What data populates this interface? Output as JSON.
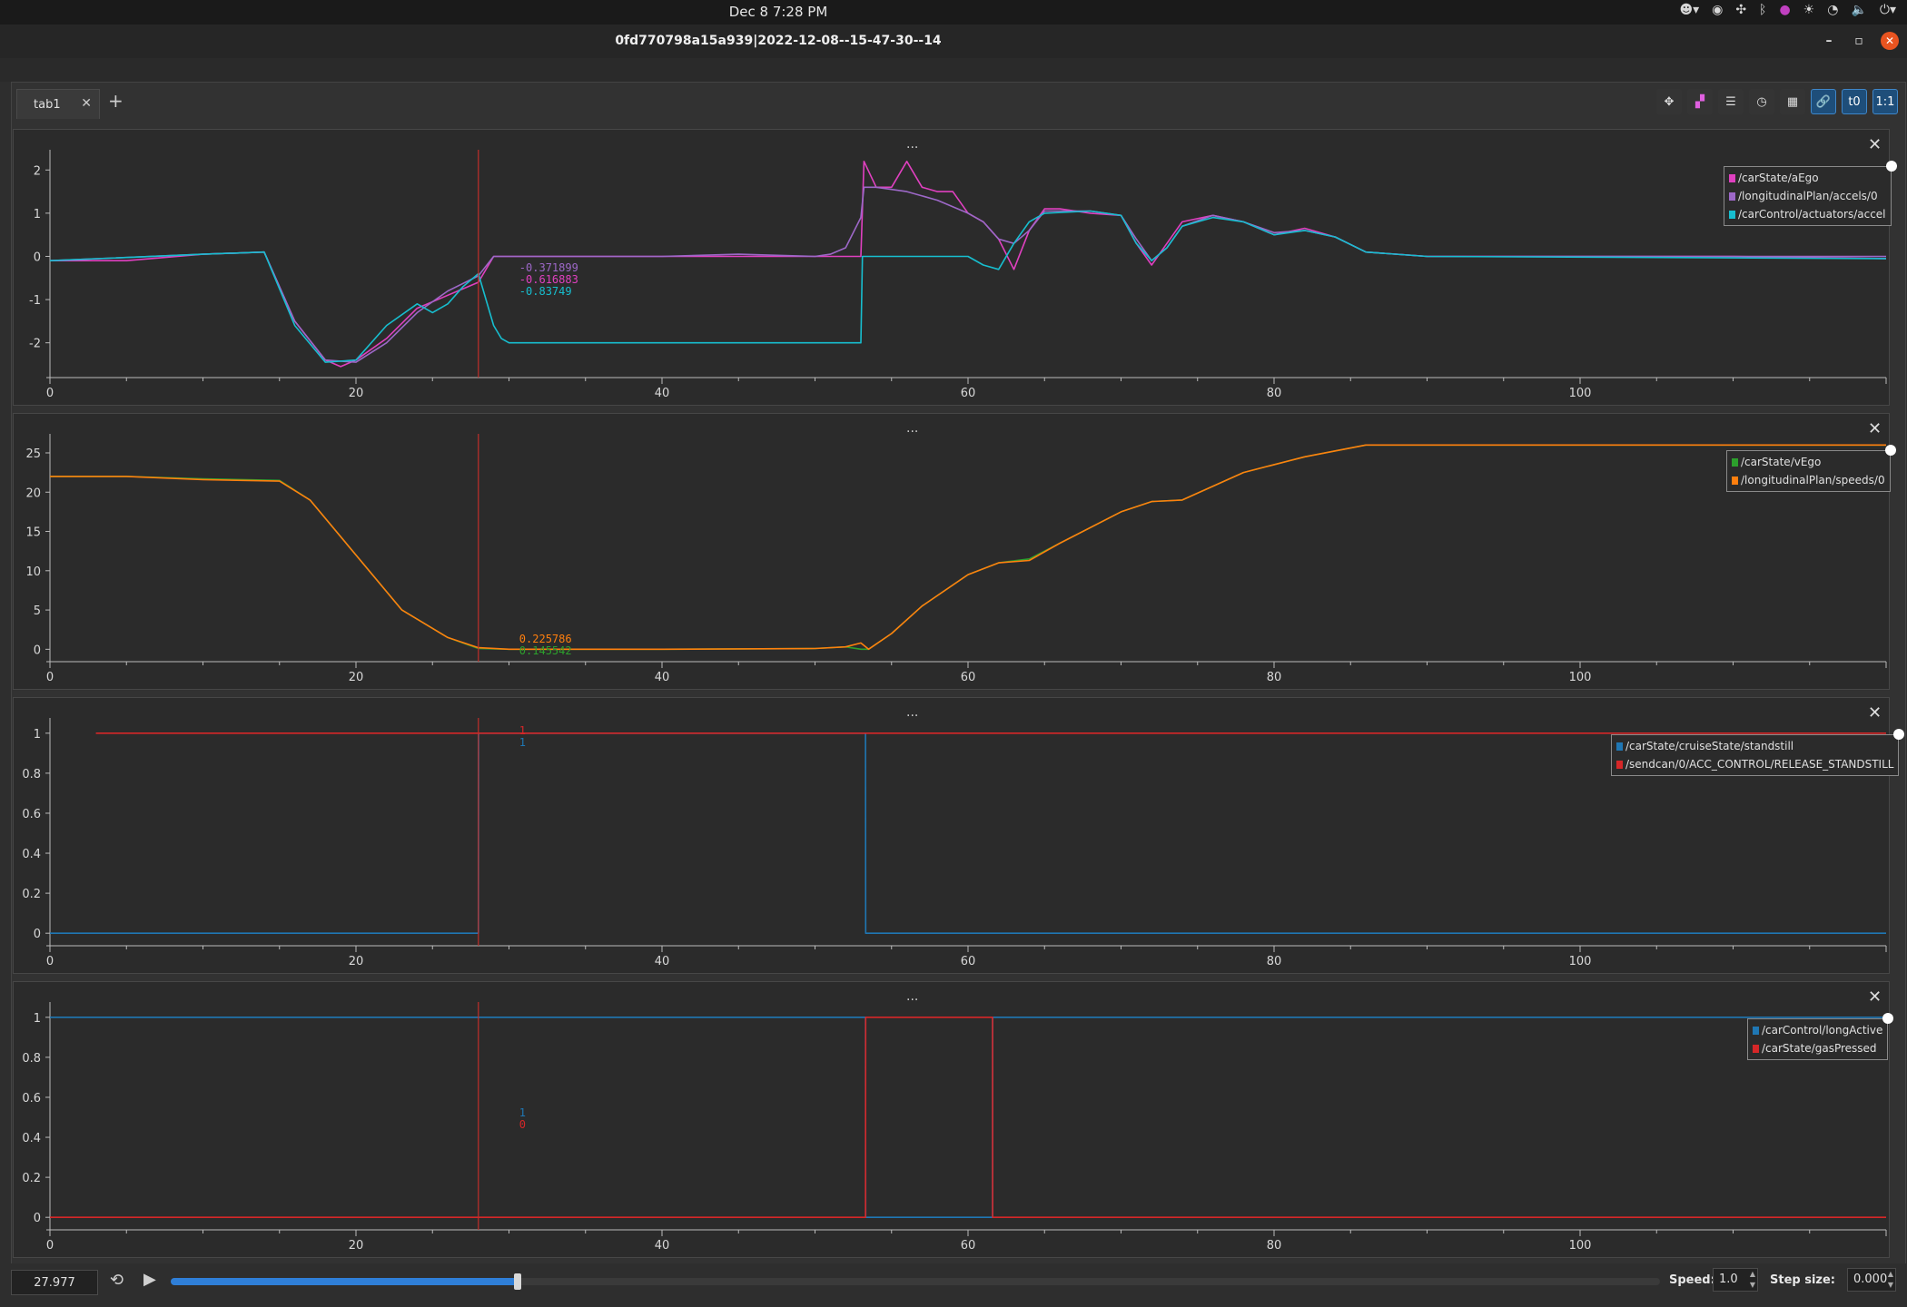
{
  "system_bar": {
    "clock": "Dec 8   7:28 PM"
  },
  "window": {
    "title": "0fd770798a15a939|2022-12-08--15-47-30--14"
  },
  "tabs": [
    {
      "label": "tab1"
    }
  ],
  "toolbar": {
    "ratio_label": "1:1",
    "t0_label": "t0"
  },
  "panels": [
    {
      "handle": "...",
      "y_ticks": [
        "2",
        "1",
        "0",
        "-1",
        "-2"
      ],
      "x_ticks": [
        "0",
        "20",
        "40",
        "60",
        "80",
        "100"
      ],
      "legend": [
        {
          "name": "/carState/aEgo",
          "color": "#e040c0"
        },
        {
          "name": "/longitudinalPlan/accels/0",
          "color": "#9d68c8"
        },
        {
          "name": "/carControl/actuators/accel",
          "color": "#17becf"
        }
      ],
      "cursor_values": [
        {
          "text": "-0.371899",
          "color": "#9d68c8"
        },
        {
          "text": "-0.616883",
          "color": "#e040c0"
        },
        {
          "text": "-0.83749",
          "color": "#17becf"
        }
      ]
    },
    {
      "handle": "...",
      "y_ticks": [
        "25",
        "20",
        "15",
        "10",
        "5",
        "0"
      ],
      "x_ticks": [
        "0",
        "20",
        "40",
        "60",
        "80",
        "100"
      ],
      "legend": [
        {
          "name": "/carState/vEgo",
          "color": "#2ca02c"
        },
        {
          "name": "/longitudinalPlan/speeds/0",
          "color": "#ff7f0e"
        }
      ],
      "cursor_values": [
        {
          "text": "0.225786",
          "color": "#ff7f0e"
        },
        {
          "text": "0.145542",
          "color": "#2ca02c"
        }
      ]
    },
    {
      "handle": "...",
      "y_ticks": [
        "1",
        "0.8",
        "0.6",
        "0.4",
        "0.2",
        "0"
      ],
      "x_ticks": [
        "0",
        "20",
        "40",
        "60",
        "80",
        "100"
      ],
      "legend": [
        {
          "name": "/carState/cruiseState/standstill",
          "color": "#1f77b4"
        },
        {
          "name": "/sendcan/0/ACC_CONTROL/RELEASE_STANDSTILL",
          "color": "#d62728"
        }
      ],
      "cursor_values": [
        {
          "text": "1",
          "color": "#d62728"
        },
        {
          "text": "1",
          "color": "#1f77b4"
        }
      ]
    },
    {
      "handle": "...",
      "y_ticks": [
        "1",
        "0.8",
        "0.6",
        "0.4",
        "0.2",
        "0"
      ],
      "x_ticks": [
        "0",
        "20",
        "40",
        "60",
        "80",
        "100"
      ],
      "legend": [
        {
          "name": "/carControl/longActive",
          "color": "#1f77b4"
        },
        {
          "name": "/carState/gasPressed",
          "color": "#d62728"
        }
      ],
      "cursor_values": [
        {
          "text": "1",
          "color": "#1f77b4"
        },
        {
          "text": "0",
          "color": "#d62728"
        }
      ]
    }
  ],
  "playback": {
    "time": "27.977",
    "progress": 0.233,
    "speed_label": "Speed:",
    "speed_value": "1.0",
    "step_label": "Step size:",
    "step_value": "0.000"
  },
  "chart_data": [
    {
      "type": "line",
      "cursor_x": 28,
      "xlim": [
        0,
        120
      ],
      "ylim": [
        -2.7,
        2.3
      ],
      "series": [
        {
          "name": "/carState/aEgo",
          "color": "#e040c0",
          "x": [
            0,
            5,
            10,
            14,
            16,
            18,
            19,
            20,
            22,
            24,
            26,
            28,
            29,
            30,
            35,
            40,
            45,
            50,
            53,
            53.2,
            54,
            55,
            56,
            57,
            58,
            59,
            60,
            61,
            62,
            63,
            64,
            65,
            66,
            68,
            70,
            71,
            72,
            73,
            74,
            76,
            78,
            80,
            82,
            84,
            86,
            88,
            90,
            100,
            110,
            120
          ],
          "y": [
            -0.1,
            -0.1,
            0.05,
            0.1,
            -1.5,
            -2.4,
            -2.55,
            -2.4,
            -1.9,
            -1.2,
            -0.9,
            -0.6,
            0,
            0,
            0,
            0,
            0,
            0,
            0,
            2.2,
            1.6,
            1.6,
            2.2,
            1.6,
            1.5,
            1.5,
            1.0,
            0.8,
            0.4,
            -0.3,
            0.6,
            1.1,
            1.1,
            1.0,
            0.95,
            0.3,
            -0.2,
            0.3,
            0.8,
            0.95,
            0.8,
            0.5,
            0.65,
            0.45,
            0.1,
            0.05,
            0,
            0,
            0,
            -0.05
          ]
        },
        {
          "name": "/longitudinalPlan/accels/0",
          "color": "#9d68c8",
          "x": [
            0,
            10,
            14,
            16,
            18,
            20,
            22,
            24,
            26,
            28,
            29,
            30,
            40,
            45,
            50,
            51,
            52,
            53,
            53.2,
            54,
            55,
            56,
            58,
            60,
            61,
            62,
            63,
            64,
            65,
            68,
            70,
            71,
            72,
            73,
            74,
            76,
            78,
            80,
            82,
            84,
            86,
            90,
            120
          ],
          "y": [
            -0.1,
            0.05,
            0.1,
            -1.5,
            -2.4,
            -2.45,
            -2.0,
            -1.3,
            -0.8,
            -0.45,
            0,
            0,
            0,
            0.05,
            0,
            0.05,
            0.2,
            0.9,
            1.6,
            1.6,
            1.55,
            1.5,
            1.3,
            1.0,
            0.8,
            0.4,
            0.3,
            0.6,
            1.05,
            1.05,
            0.95,
            0.4,
            -0.1,
            0.2,
            0.7,
            0.95,
            0.8,
            0.55,
            0.6,
            0.45,
            0.1,
            0,
            0
          ]
        },
        {
          "name": "/carControl/actuators/accel",
          "color": "#17becf",
          "x": [
            0,
            10,
            14,
            16,
            18,
            20,
            22,
            24,
            25,
            26,
            27,
            28,
            28.5,
            29,
            29.5,
            30,
            53,
            53.1,
            60,
            61,
            62,
            63,
            64,
            65,
            68,
            70,
            71,
            72,
            73,
            74,
            76,
            78,
            80,
            82,
            84,
            86,
            90,
            120
          ],
          "y": [
            -0.1,
            0.05,
            0.1,
            -1.6,
            -2.45,
            -2.4,
            -1.6,
            -1.1,
            -1.3,
            -1.1,
            -0.7,
            -0.4,
            -1.0,
            -1.6,
            -1.9,
            -2.0,
            -2.0,
            0,
            0,
            -0.2,
            -0.3,
            0.3,
            0.8,
            1.0,
            1.05,
            0.95,
            0.3,
            -0.1,
            0.2,
            0.7,
            0.9,
            0.8,
            0.5,
            0.6,
            0.45,
            0.1,
            0,
            -0.05
          ]
        }
      ]
    },
    {
      "type": "line",
      "cursor_x": 28,
      "xlim": [
        0,
        120
      ],
      "ylim": [
        -1,
        26.5
      ],
      "series": [
        {
          "name": "/carState/vEgo",
          "color": "#2ca02c",
          "x": [
            0,
            5,
            10,
            15,
            17,
            20,
            23,
            26,
            28,
            30,
            40,
            50,
            52,
            53,
            53.5,
            55,
            57,
            60,
            62,
            64,
            66,
            70,
            72,
            74,
            78,
            82,
            86,
            90,
            120
          ],
          "y": [
            22,
            22,
            21.7,
            21.5,
            19,
            12,
            5,
            1.5,
            0.1,
            0,
            0,
            0.1,
            0.3,
            0,
            0,
            2,
            5.5,
            9.5,
            11,
            11.5,
            13.5,
            17.5,
            18.8,
            19,
            22.5,
            24.5,
            26,
            26,
            26
          ]
        },
        {
          "name": "/longitudinalPlan/speeds/0",
          "color": "#ff7f0e",
          "x": [
            0,
            5,
            10,
            15,
            17,
            20,
            23,
            26,
            28,
            30,
            40,
            50,
            52,
            53,
            53.5,
            55,
            57,
            60,
            62,
            64,
            66,
            70,
            72,
            74,
            78,
            82,
            86,
            90,
            120
          ],
          "y": [
            22,
            22,
            21.6,
            21.4,
            19,
            12,
            5,
            1.5,
            0.2,
            0,
            0,
            0.1,
            0.3,
            0.8,
            0,
            2,
            5.5,
            9.5,
            11,
            11.3,
            13.5,
            17.5,
            18.8,
            19,
            22.5,
            24.5,
            26,
            26,
            26
          ]
        }
      ]
    },
    {
      "type": "line",
      "cursor_x": 28,
      "xlim": [
        0,
        120
      ],
      "ylim": [
        -0.04,
        1.04
      ],
      "series": [
        {
          "name": "/carState/cruiseState/standstill",
          "color": "#1f77b4",
          "x": [
            0,
            28,
            28.01,
            53.3,
            53.31,
            120
          ],
          "y": [
            0,
            0,
            1,
            1,
            0,
            0
          ]
        },
        {
          "name": "/sendcan/0/ACC_CONTROL/RELEASE_STANDSTILL",
          "color": "#d62728",
          "x": [
            3,
            28,
            28.01,
            120
          ],
          "y": [
            1,
            1,
            1,
            1
          ]
        }
      ]
    },
    {
      "type": "line",
      "cursor_x": 28,
      "xlim": [
        0,
        120
      ],
      "ylim": [
        -0.04,
        1.04
      ],
      "series": [
        {
          "name": "/carControl/longActive",
          "color": "#1f77b4",
          "x": [
            0,
            53.3,
            53.31,
            61.6,
            61.61,
            120
          ],
          "y": [
            1,
            1,
            0,
            0,
            1,
            1
          ]
        },
        {
          "name": "/carState/gasPressed",
          "color": "#d62728",
          "x": [
            0,
            53.3,
            53.31,
            61.6,
            61.61,
            120
          ],
          "y": [
            0,
            0,
            1,
            1,
            0,
            0
          ]
        }
      ]
    }
  ]
}
